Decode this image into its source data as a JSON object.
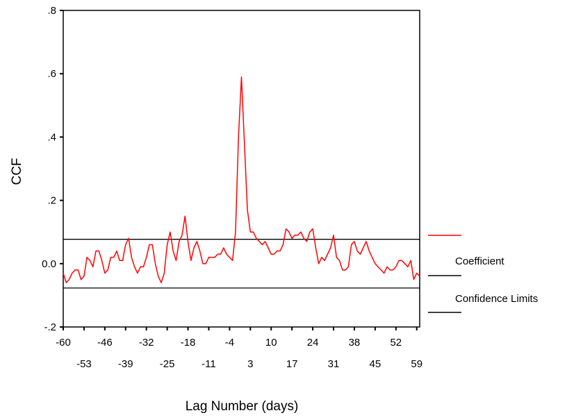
{
  "chart_data": {
    "type": "line",
    "xlabel": "Lag Number (days)",
    "ylabel": "CCF",
    "xlim": [
      -60,
      60
    ],
    "ylim": [
      -0.2,
      0.8
    ],
    "y_ticks": [
      {
        "value": 0.8,
        "label": ".8"
      },
      {
        "value": 0.6,
        "label": ".6"
      },
      {
        "value": 0.4,
        "label": ".4"
      },
      {
        "value": 0.2,
        "label": ".2"
      },
      {
        "value": 0.0,
        "label": "0.0"
      },
      {
        "value": -0.2,
        "label": "-.2"
      }
    ],
    "x_tick_labels_row1": [
      -60,
      -46,
      -32,
      -18,
      -4,
      10,
      24,
      38,
      52
    ],
    "x_tick_labels_row2": [
      -53,
      -39,
      -25,
      -11,
      3,
      17,
      31,
      45,
      59
    ],
    "grid": false,
    "legend_position": "right",
    "series": [
      {
        "name": "Coefficient",
        "color": "#ff0000",
        "x": [
          -60,
          -59,
          -58,
          -57,
          -56,
          -55,
          -54,
          -53,
          -52,
          -51,
          -50,
          -49,
          -48,
          -47,
          -46,
          -45,
          -44,
          -43,
          -42,
          -41,
          -40,
          -39,
          -38,
          -37,
          -36,
          -35,
          -34,
          -33,
          -32,
          -31,
          -30,
          -29,
          -28,
          -27,
          -26,
          -25,
          -24,
          -23,
          -22,
          -21,
          -20,
          -19,
          -18,
          -17,
          -16,
          -15,
          -14,
          -13,
          -12,
          -11,
          -10,
          -9,
          -8,
          -7,
          -6,
          -5,
          -4,
          -3,
          -2,
          -1,
          0,
          1,
          2,
          3,
          4,
          5,
          6,
          7,
          8,
          9,
          10,
          11,
          12,
          13,
          14,
          15,
          16,
          17,
          18,
          19,
          20,
          21,
          22,
          23,
          24,
          25,
          26,
          27,
          28,
          29,
          30,
          31,
          32,
          33,
          34,
          35,
          36,
          37,
          38,
          39,
          40,
          41,
          42,
          43,
          44,
          45,
          46,
          47,
          48,
          49,
          50,
          51,
          52,
          53,
          54,
          55,
          56,
          57,
          58,
          59,
          60
        ],
        "values": [
          -0.03,
          -0.06,
          -0.05,
          -0.03,
          -0.02,
          -0.02,
          -0.05,
          -0.04,
          0.02,
          0.01,
          -0.01,
          0.04,
          0.04,
          0.01,
          -0.03,
          -0.02,
          0.02,
          0.02,
          0.04,
          0.01,
          0.01,
          0.06,
          0.08,
          0.02,
          -0.01,
          -0.03,
          -0.01,
          -0.01,
          0.02,
          0.06,
          0.06,
          0.0,
          -0.04,
          -0.06,
          -0.03,
          0.06,
          0.1,
          0.04,
          0.01,
          0.07,
          0.09,
          0.15,
          0.07,
          0.01,
          0.05,
          0.07,
          0.04,
          0.0,
          0.0,
          0.02,
          0.02,
          0.02,
          0.03,
          0.03,
          0.05,
          0.03,
          0.02,
          0.01,
          0.1,
          0.4,
          0.59,
          0.38,
          0.17,
          0.1,
          0.1,
          0.08,
          0.07,
          0.06,
          0.07,
          0.05,
          0.03,
          0.03,
          0.04,
          0.04,
          0.06,
          0.11,
          0.1,
          0.08,
          0.09,
          0.09,
          0.1,
          0.08,
          0.07,
          0.1,
          0.11,
          0.05,
          0.0,
          0.02,
          0.01,
          0.03,
          0.05,
          0.09,
          0.02,
          0.01,
          -0.02,
          -0.02,
          -0.01,
          0.06,
          0.07,
          0.04,
          0.03,
          0.05,
          0.07,
          0.04,
          0.02,
          0.0,
          -0.01,
          -0.02,
          -0.03,
          -0.01,
          -0.02,
          -0.02,
          -0.01,
          0.01,
          0.01,
          0.0,
          -0.01,
          0.01,
          -0.05,
          -0.03,
          -0.04
        ]
      },
      {
        "name": "Confidence Limits",
        "color": "#000000",
        "upper": 0.077,
        "lower": -0.077
      }
    ]
  }
}
